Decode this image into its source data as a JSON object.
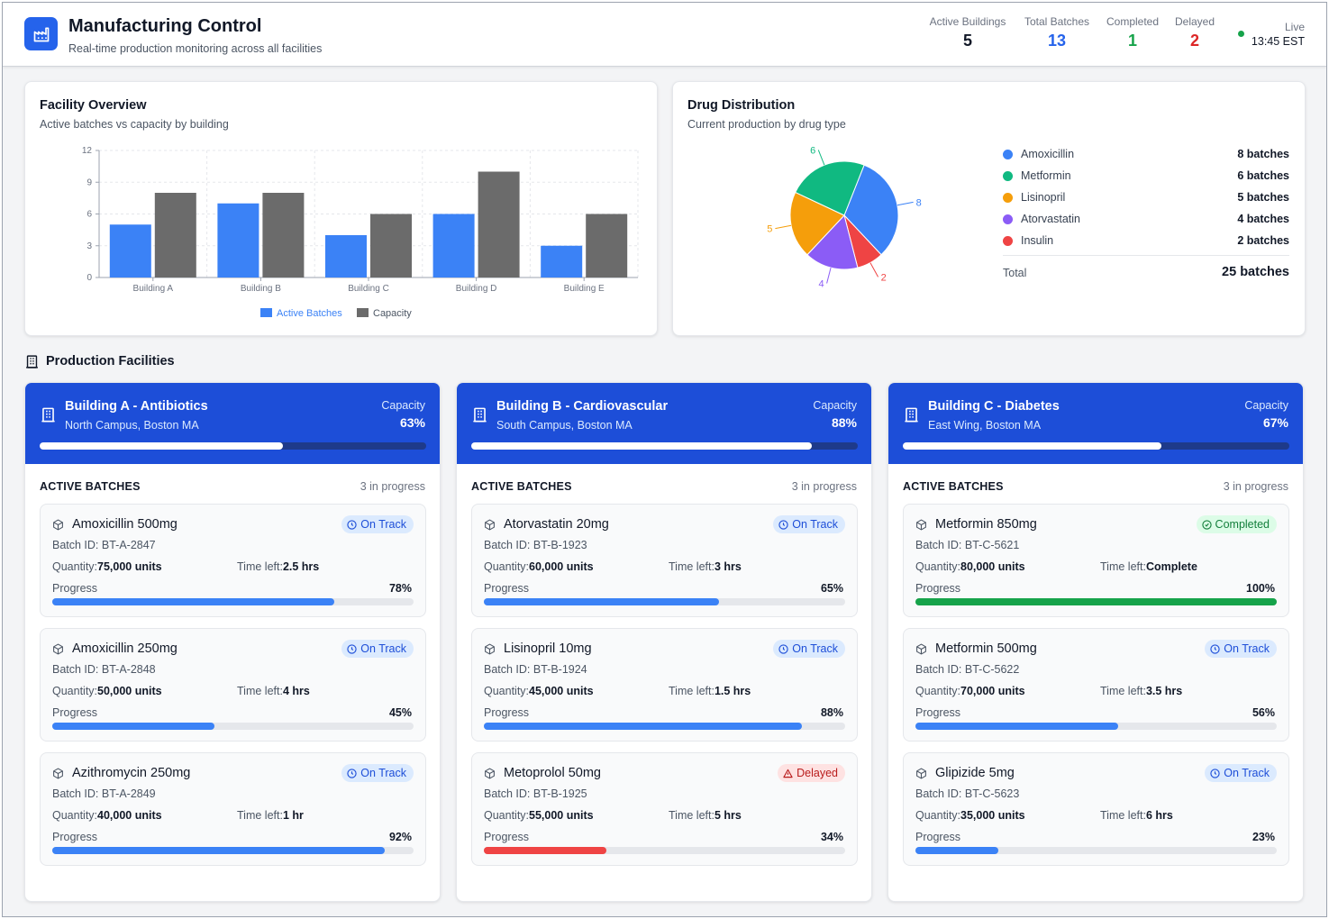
{
  "header": {
    "title": "Manufacturing Control",
    "subtitle": "Real-time production monitoring across all facilities",
    "stats": [
      {
        "label": "Active Buildings",
        "value": "5",
        "color": "#111827"
      },
      {
        "label": "Total Batches",
        "value": "13",
        "color": "#2563eb"
      },
      {
        "label": "Completed",
        "value": "1",
        "color": "#16a34a"
      },
      {
        "label": "Delayed",
        "value": "2",
        "color": "#dc2626"
      }
    ],
    "live_label": "Live",
    "live_time": "13:45 EST"
  },
  "colors": {
    "primary": "#2563eb",
    "capacity_gray": "#6b6b6b",
    "header_blue": "#1d4ed8",
    "success": "#16a34a",
    "danger": "#ef4444"
  },
  "facility_overview": {
    "title": "Facility Overview",
    "subtitle": "Active batches vs capacity by building"
  },
  "drug_distribution": {
    "title": "Drug Distribution",
    "subtitle": "Current production by drug type",
    "total_label": "Total",
    "total_value": "25 batches"
  },
  "chart_data": [
    {
      "type": "bar",
      "title": "Facility Overview",
      "categories": [
        "Building A",
        "Building B",
        "Building C",
        "Building D",
        "Building E"
      ],
      "series": [
        {
          "name": "Active Batches",
          "values": [
            5,
            7,
            4,
            6,
            3
          ],
          "color": "#3b82f6"
        },
        {
          "name": "Capacity",
          "values": [
            8,
            8,
            6,
            10,
            6
          ],
          "color": "#6b6b6b"
        }
      ],
      "yticks": [
        "0",
        "3",
        "6",
        "9",
        "12"
      ],
      "ylim": [
        0,
        12
      ],
      "grid": true,
      "legend": "bottom"
    },
    {
      "type": "pie",
      "title": "Drug Distribution",
      "slices": [
        {
          "name": "Amoxicillin",
          "value": 8,
          "label": "8",
          "display": "8 batches",
          "color": "#3b82f6"
        },
        {
          "name": "Insulin",
          "value": 2,
          "label": "2",
          "display": "2 batches",
          "color": "#ef4444"
        },
        {
          "name": "Atorvastatin",
          "value": 4,
          "label": "4",
          "display": "4 batches",
          "color": "#8b5cf6"
        },
        {
          "name": "Lisinopril",
          "value": 5,
          "label": "5",
          "display": "5 batches",
          "color": "#f59e0b"
        },
        {
          "name": "Metformin",
          "value": 6,
          "label": "6",
          "display": "6 batches",
          "color": "#10b981"
        }
      ],
      "legend_order": [
        "Amoxicillin",
        "Metformin",
        "Lisinopril",
        "Atorvastatin",
        "Insulin"
      ]
    }
  ],
  "facilities_section": {
    "title": "Production Facilities",
    "active_batches_label": "ACTIVE BATCHES",
    "capacity_label": "Capacity",
    "quantity_label": "Quantity:",
    "time_left_label": "Time left:",
    "progress_label": "Progress"
  },
  "facilities": [
    {
      "name": "Building A - Antibiotics",
      "location": "North Campus, Boston MA",
      "capacity": "63%",
      "capacity_pct": 63,
      "count_text": "3 in progress",
      "batches": [
        {
          "name": "Amoxicillin 500mg",
          "batch_id": "Batch ID: BT-A-2847",
          "quantity": "75,000 units",
          "time_left": "2.5 hrs",
          "progress": "78%",
          "progress_pct": 78,
          "status": "On Track",
          "status_kind": "ontrack"
        },
        {
          "name": "Amoxicillin 250mg",
          "batch_id": "Batch ID: BT-A-2848",
          "quantity": "50,000 units",
          "time_left": "4 hrs",
          "progress": "45%",
          "progress_pct": 45,
          "status": "On Track",
          "status_kind": "ontrack"
        },
        {
          "name": "Azithromycin 250mg",
          "batch_id": "Batch ID: BT-A-2849",
          "quantity": "40,000 units",
          "time_left": "1 hr",
          "progress": "92%",
          "progress_pct": 92,
          "status": "On Track",
          "status_kind": "ontrack"
        }
      ]
    },
    {
      "name": "Building B - Cardiovascular",
      "location": "South Campus, Boston MA",
      "capacity": "88%",
      "capacity_pct": 88,
      "count_text": "3 in progress",
      "batches": [
        {
          "name": "Atorvastatin 20mg",
          "batch_id": "Batch ID: BT-B-1923",
          "quantity": "60,000 units",
          "time_left": "3 hrs",
          "progress": "65%",
          "progress_pct": 65,
          "status": "On Track",
          "status_kind": "ontrack"
        },
        {
          "name": "Lisinopril 10mg",
          "batch_id": "Batch ID: BT-B-1924",
          "quantity": "45,000 units",
          "time_left": "1.5 hrs",
          "progress": "88%",
          "progress_pct": 88,
          "status": "On Track",
          "status_kind": "ontrack"
        },
        {
          "name": "Metoprolol 50mg",
          "batch_id": "Batch ID: BT-B-1925",
          "quantity": "55,000 units",
          "time_left": "5 hrs",
          "progress": "34%",
          "progress_pct": 34,
          "status": "Delayed",
          "status_kind": "delayed"
        }
      ]
    },
    {
      "name": "Building C - Diabetes",
      "location": "East Wing, Boston MA",
      "capacity": "67%",
      "capacity_pct": 67,
      "count_text": "3 in progress",
      "batches": [
        {
          "name": "Metformin 850mg",
          "batch_id": "Batch ID: BT-C-5621",
          "quantity": "80,000 units",
          "time_left": "Complete",
          "progress": "100%",
          "progress_pct": 100,
          "status": "Completed",
          "status_kind": "completed"
        },
        {
          "name": "Metformin 500mg",
          "batch_id": "Batch ID: BT-C-5622",
          "quantity": "70,000 units",
          "time_left": "3.5 hrs",
          "progress": "56%",
          "progress_pct": 56,
          "status": "On Track",
          "status_kind": "ontrack"
        },
        {
          "name": "Glipizide 5mg",
          "batch_id": "Batch ID: BT-C-5623",
          "quantity": "35,000 units",
          "time_left": "6 hrs",
          "progress": "23%",
          "progress_pct": 23,
          "status": "On Track",
          "status_kind": "ontrack"
        }
      ]
    }
  ]
}
